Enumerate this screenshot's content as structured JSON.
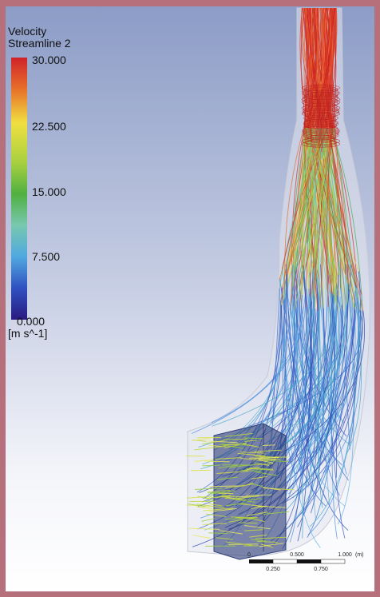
{
  "legend": {
    "title": "Velocity",
    "subtitle": "Streamline 2",
    "ticks": [
      "30.000",
      "22.500",
      "15.000",
      "7.500",
      "0.000"
    ],
    "unit": "[m s^-1]"
  },
  "scale_bar": {
    "top_labels": [
      "0",
      "0.500",
      "1.000"
    ],
    "unit": "(m)",
    "bottom_labels": [
      "0.250",
      "0.750"
    ]
  }
}
